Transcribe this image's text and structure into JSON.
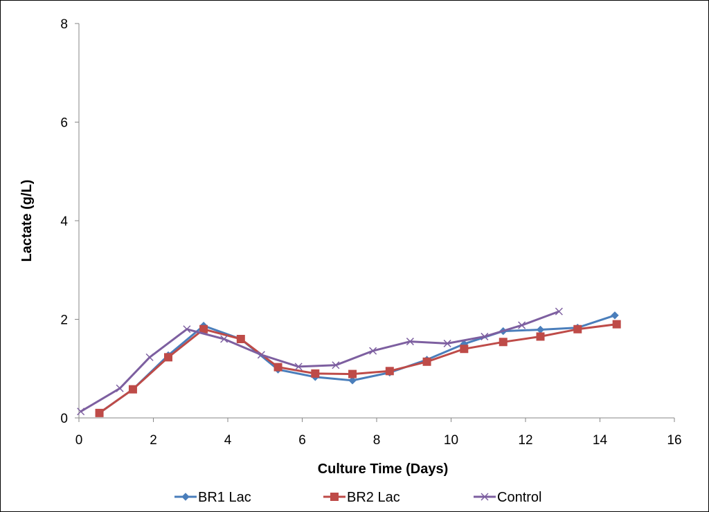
{
  "chart_data": {
    "type": "line",
    "title": "",
    "xlabel": "Culture Time (Days)",
    "ylabel": "Lactate (g/L)",
    "xlim": [
      0,
      16
    ],
    "ylim": [
      0,
      8
    ],
    "xticks": [
      0,
      2,
      4,
      6,
      8,
      10,
      12,
      14,
      16
    ],
    "yticks": [
      0,
      2,
      4,
      6,
      8
    ],
    "grid": false,
    "legend_position": "bottom",
    "series": [
      {
        "name": "BR1 Lac",
        "color": "#4a7ebb",
        "marker": "diamond",
        "x": [
          0.55,
          1.45,
          2.4,
          3.35,
          4.35,
          5.35,
          6.35,
          7.35,
          8.35,
          9.35,
          10.35,
          11.4,
          12.4,
          13.4,
          14.4
        ],
        "y": [
          0.1,
          0.58,
          1.27,
          1.87,
          1.6,
          0.98,
          0.83,
          0.76,
          0.92,
          1.18,
          1.5,
          1.76,
          1.79,
          1.83,
          2.08
        ]
      },
      {
        "name": "BR2 Lac",
        "color": "#be4b48",
        "marker": "square",
        "x": [
          0.55,
          1.45,
          2.4,
          3.35,
          4.35,
          5.35,
          6.35,
          7.35,
          8.35,
          9.35,
          10.35,
          11.4,
          12.4,
          13.4,
          14.45
        ],
        "y": [
          0.1,
          0.58,
          1.23,
          1.8,
          1.6,
          1.03,
          0.9,
          0.89,
          0.95,
          1.14,
          1.4,
          1.54,
          1.65,
          1.8,
          1.9
        ]
      },
      {
        "name": "Control",
        "color": "#7d5fa0",
        "marker": "x",
        "x": [
          0.05,
          1.1,
          1.9,
          2.9,
          3.9,
          4.9,
          5.9,
          6.9,
          7.9,
          8.9,
          9.9,
          10.9,
          11.9,
          12.9
        ],
        "y": [
          0.13,
          0.6,
          1.23,
          1.8,
          1.6,
          1.28,
          1.04,
          1.07,
          1.36,
          1.55,
          1.51,
          1.65,
          1.88,
          2.16
        ]
      }
    ]
  }
}
